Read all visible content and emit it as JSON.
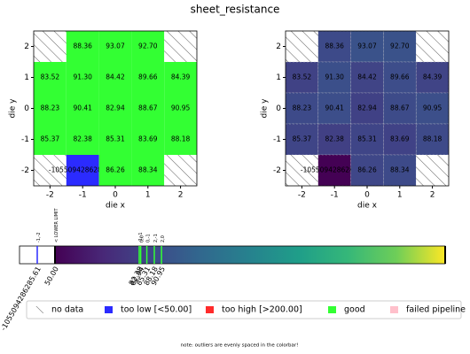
{
  "title": "sheet_resistance",
  "chart_data": [
    {
      "type": "heatmap",
      "cmap": "status",
      "xlabel": "die x",
      "ylabel": "die y",
      "x": [
        -2,
        -1,
        0,
        1,
        2
      ],
      "y": [
        2,
        1,
        0,
        -1,
        -2
      ],
      "xlim": [
        -2.5,
        2.5
      ],
      "ylim": [
        -2.5,
        2.5
      ],
      "xticks": [
        -2,
        -1,
        0,
        1,
        2
      ],
      "yticks": [
        -2,
        -1,
        0,
        1,
        2
      ],
      "values": [
        [
          null,
          88.36,
          93.07,
          92.7,
          null
        ],
        [
          83.52,
          91.3,
          84.42,
          89.66,
          84.39
        ],
        [
          88.23,
          90.41,
          82.94,
          88.67,
          90.95
        ],
        [
          85.37,
          82.38,
          85.31,
          83.69,
          88.18
        ],
        [
          null,
          -1055094286285.61,
          86.26,
          88.34,
          null
        ]
      ],
      "value_labels": [
        [
          null,
          "88.36",
          "93.07",
          "92.70",
          null
        ],
        [
          "83.52",
          "91.30",
          "84.42",
          "89.66",
          "84.39"
        ],
        [
          "88.23",
          "90.41",
          "82.94",
          "88.67",
          "90.95"
        ],
        [
          "85.37",
          "82.38",
          "85.31",
          "83.69",
          "88.18"
        ],
        [
          null,
          "-1055094286285.61",
          "86.26",
          "88.34",
          null
        ]
      ]
    },
    {
      "type": "heatmap",
      "cmap": "viridis",
      "xlabel": "die x",
      "ylabel": "die y",
      "x": [
        -2,
        -1,
        0,
        1,
        2
      ],
      "y": [
        2,
        1,
        0,
        -1,
        -2
      ],
      "xlim": [
        -2.5,
        2.5
      ],
      "ylim": [
        -2.5,
        2.5
      ],
      "xticks": [
        -2,
        -1,
        0,
        1,
        2
      ],
      "yticks": [
        -2,
        -1,
        0,
        1,
        2
      ],
      "values": [
        [
          null,
          88.36,
          93.07,
          92.7,
          null
        ],
        [
          83.52,
          91.3,
          84.42,
          89.66,
          84.39
        ],
        [
          88.23,
          90.41,
          82.94,
          88.67,
          90.95
        ],
        [
          85.37,
          82.38,
          85.31,
          83.69,
          88.18
        ],
        [
          null,
          -1055094286285.61,
          86.26,
          88.34,
          null
        ]
      ],
      "value_labels": [
        [
          null,
          "88.36",
          "93.07",
          "92.70",
          null
        ],
        [
          "83.52",
          "91.30",
          "84.42",
          "89.66",
          "84.39"
        ],
        [
          "88.23",
          "90.41",
          "82.94",
          "88.67",
          "90.95"
        ],
        [
          "85.37",
          "82.38",
          "85.31",
          "83.69",
          "88.18"
        ],
        [
          null,
          "-1055094286285.61",
          "86.26",
          "88.34",
          null
        ]
      ]
    }
  ],
  "colorbar": {
    "lim": [
      50,
      200
    ],
    "outlier": {
      "value": -1055094286285.61,
      "label": "-1055094286285.61",
      "top_label": "-1,-2"
    },
    "lower": {
      "value": 50,
      "label": "50.00",
      "top_label": "< LOWER LIMIT"
    },
    "marks": [
      {
        "value": 82.38,
        "label": "82.38",
        "top_label": "-1,-1"
      },
      {
        "value": 82.94,
        "label": "82.94",
        "top_label": "0,0"
      },
      {
        "value": 85.31,
        "label": "85.31",
        "top_label": "0,-1"
      },
      {
        "value": 88.18,
        "label": "88.18",
        "top_label": "2,-1"
      },
      {
        "value": 90.95,
        "label": "90.95",
        "top_label": "2,0"
      }
    ]
  },
  "legend": [
    {
      "name": "no data",
      "hatch": true,
      "color": "#ffffff"
    },
    {
      "name": "too low [<50.00]",
      "color": "#2b2bff"
    },
    {
      "name": "too high [>200.00]",
      "color": "#ff2b2b"
    },
    {
      "name": "good",
      "color": "#33ff33"
    },
    {
      "name": "failed pipeline",
      "color": "#ffc0cb"
    }
  ],
  "note": "note: outliers are evenly spaced in the colorbar!"
}
